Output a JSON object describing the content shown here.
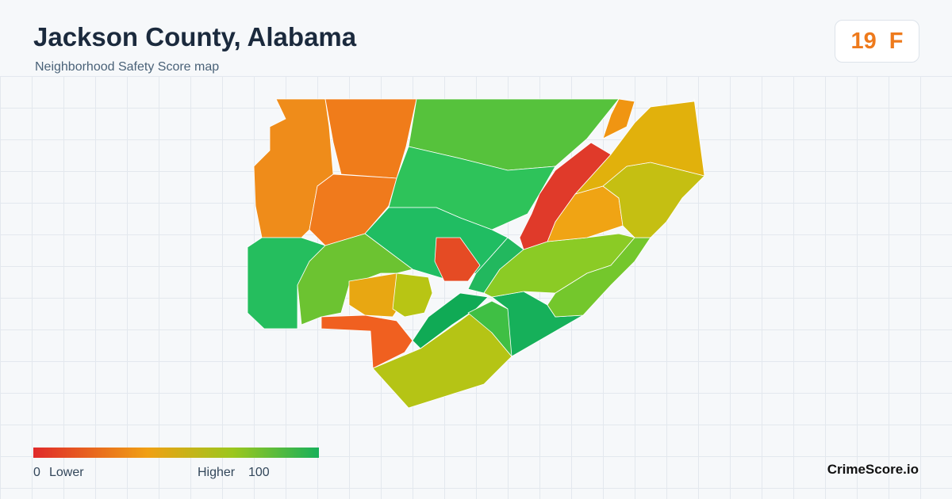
{
  "header": {
    "title": "Jackson County, Alabama",
    "subtitle": "Neighborhood Safety Score map"
  },
  "score": {
    "value": 19,
    "grade": "F"
  },
  "legend": {
    "min": 0,
    "min_label": "Lower",
    "max_label": "Higher",
    "max": 100
  },
  "brand": "CrimeScore.io"
}
